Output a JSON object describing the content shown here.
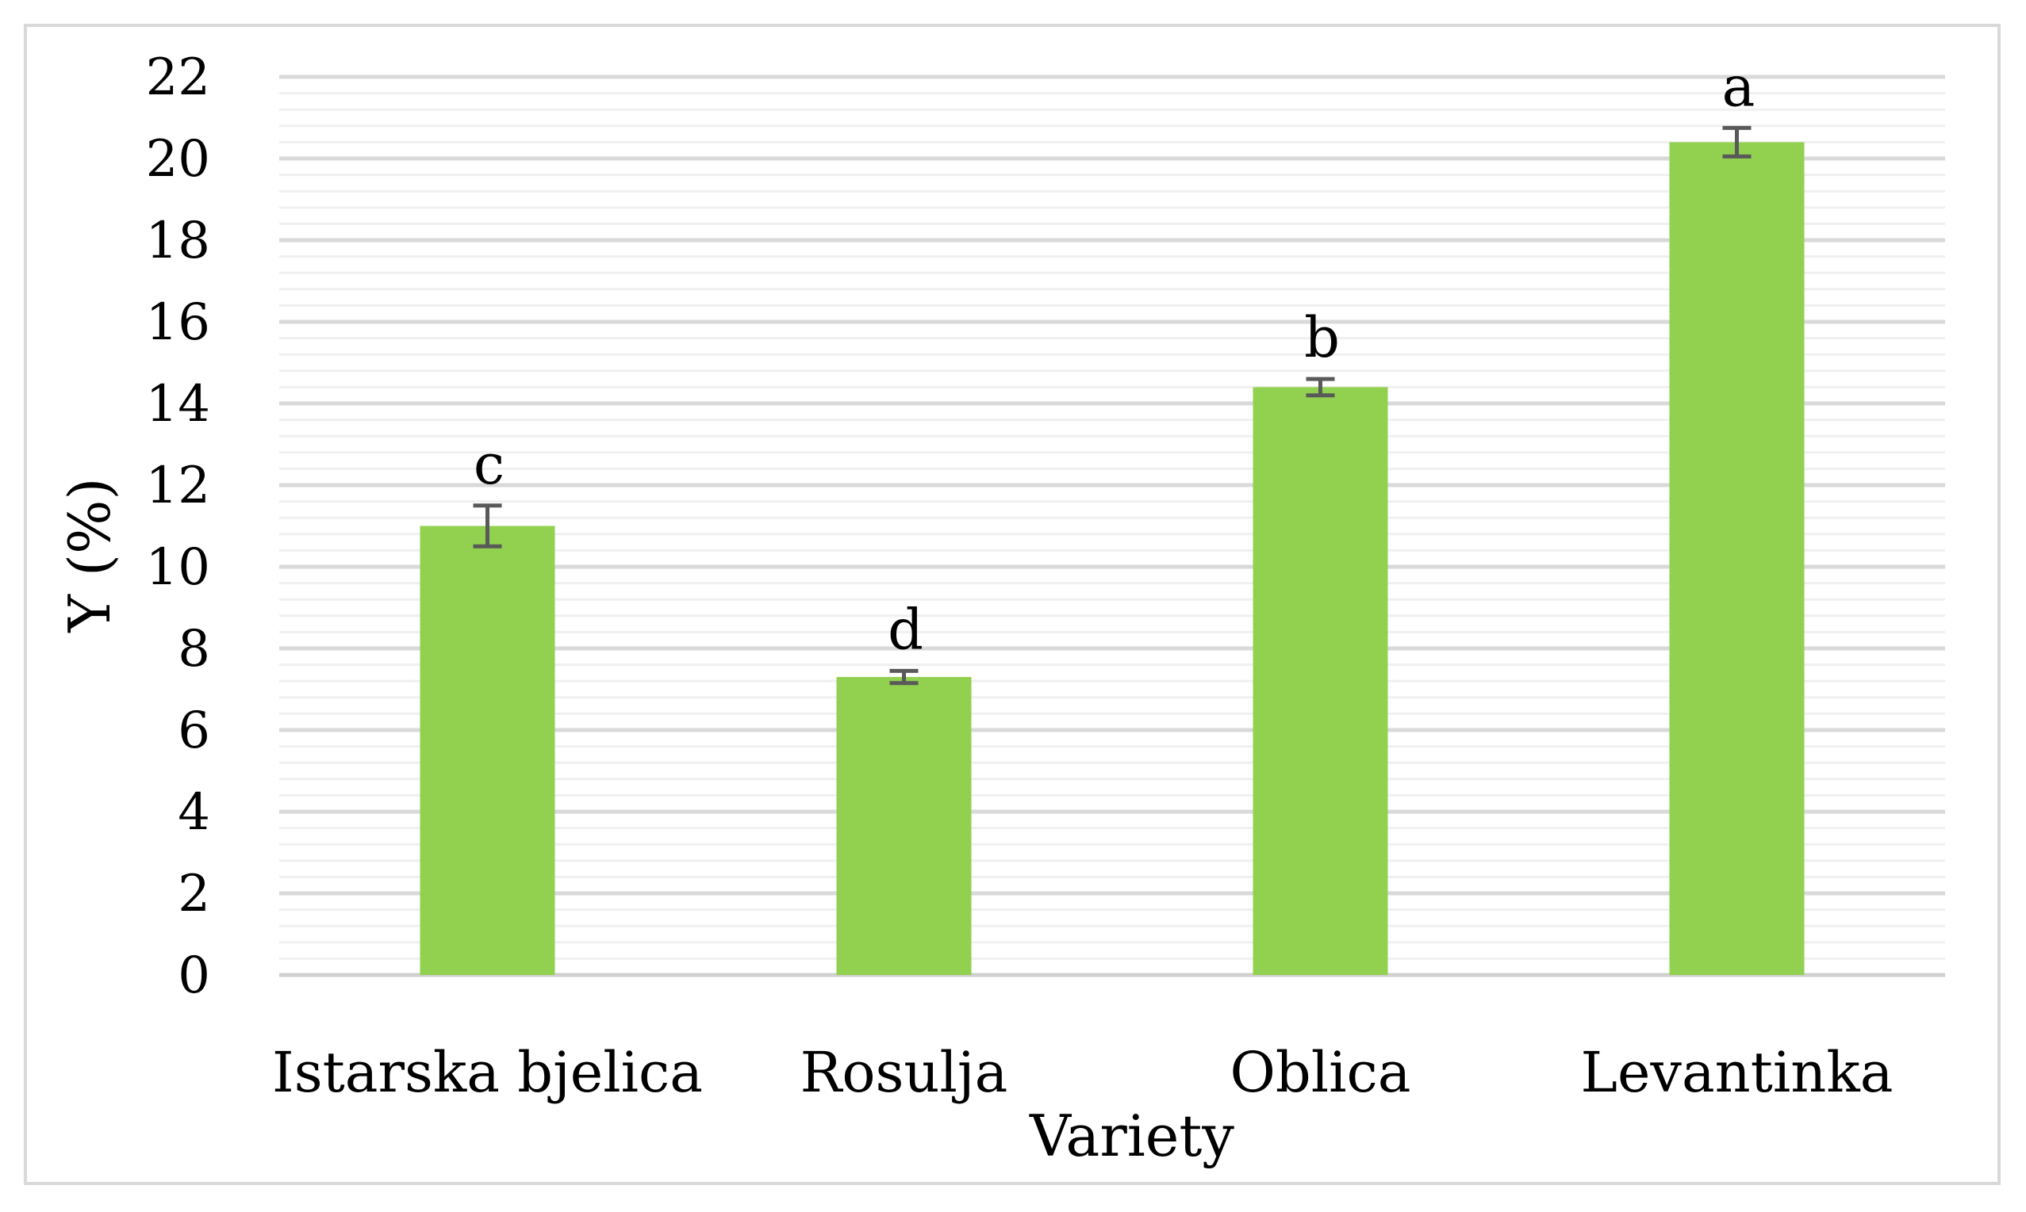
{
  "chart_data": {
    "type": "bar",
    "title": "",
    "xlabel": "Variety",
    "ylabel": "Y (%)",
    "ylim": [
      0,
      22
    ],
    "yticks": [
      0,
      2,
      4,
      6,
      8,
      10,
      12,
      14,
      16,
      18,
      20,
      22
    ],
    "minor_step": 0.4,
    "categories": [
      "Istarska bjelica",
      "Rosulja",
      "Oblica",
      "Levantinka"
    ],
    "values": [
      11.0,
      7.3,
      14.4,
      20.4
    ],
    "errors": [
      0.5,
      0.15,
      0.2,
      0.35
    ],
    "annotations": [
      "c",
      "d",
      "b",
      "a"
    ],
    "bar_color": "#92d050",
    "error_color": "#595959",
    "grid": true,
    "legend": "none"
  }
}
